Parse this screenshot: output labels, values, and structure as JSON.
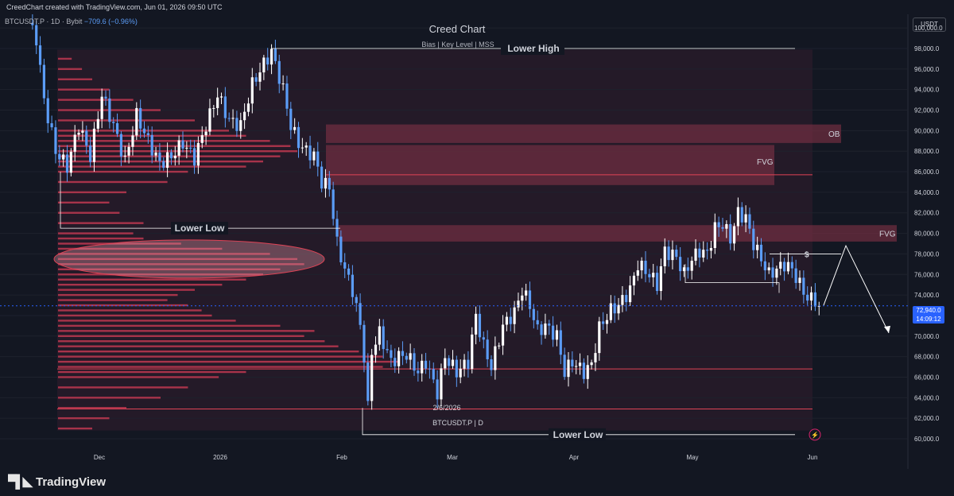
{
  "header": {
    "created_text": "CreedChart created with TradingView.com, Jun 01, 2026 09:50 UTC",
    "symbol": "BTCUSDT.P · 1D · Bybit",
    "change": "−709.6 (−0.96%)"
  },
  "title": {
    "main": "Creed Chart",
    "subtitle": "Bias  |  Key Level  |  MSS"
  },
  "price_axis": {
    "currency": "USDT",
    "current_price": "72,940.0",
    "countdown": "14:09:12"
  },
  "footer": {
    "logo_text": "TradingView"
  },
  "annotations": {
    "lower_high": "Lower High",
    "lower_low_left": "Lower Low",
    "lower_low_bottom": "Lower Low",
    "ob": "OB",
    "fvg_upper": "FVG",
    "fvg_right": "FVG",
    "liquidity": "$",
    "pivot_date": "2/6/2026",
    "symbol_tag": "BTCUSDT.P | D"
  },
  "colors": {
    "background": "#131722",
    "bull_candle": "#ffffff",
    "bear_candle": "#5b9cf6",
    "zone": "#7a2f44",
    "profile": "#c83a52",
    "level_line": "#e04356"
  },
  "chart_data": {
    "type": "candlestick",
    "symbol": "BTCUSDT.P",
    "timeframe": "1D",
    "exchange": "Bybit",
    "y_axis": {
      "min": 60000,
      "max": 100000,
      "ticks": [
        60000,
        62000,
        64000,
        66000,
        68000,
        70000,
        72000,
        74000,
        76000,
        78000,
        80000,
        82000,
        84000,
        86000,
        88000,
        90000,
        92000,
        94000,
        96000,
        98000,
        100000
      ]
    },
    "y_tick_labels": [
      "60,000.0",
      "62,000.0",
      "64,000.0",
      "66,000.0",
      "68,000.0",
      "70,000.0",
      "72,000.0",
      "74,000.0",
      "76,000.0",
      "78,000.0",
      "80,000.0",
      "82,000.0",
      "84,000.0",
      "86,000.0",
      "88,000.0",
      "90,000.0",
      "92,000.0",
      "94,000.0",
      "96,000.0",
      "98,000.0",
      "100,000.0"
    ],
    "x_tick_labels": [
      "Dec",
      "2026",
      "Feb",
      "Mar",
      "Apr",
      "May",
      "Jun"
    ],
    "anchor_path": [
      [
        0,
        100500
      ],
      [
        2,
        99000
      ],
      [
        4,
        93000
      ],
      [
        7,
        88000
      ],
      [
        10,
        86500
      ],
      [
        13,
        90500
      ],
      [
        16,
        87500
      ],
      [
        19,
        93500
      ],
      [
        22,
        90500
      ],
      [
        25,
        87000
      ],
      [
        28,
        91500
      ],
      [
        31,
        89000
      ],
      [
        34,
        86800
      ],
      [
        37,
        87500
      ],
      [
        40,
        88800
      ],
      [
        43,
        87300
      ],
      [
        46,
        90500
      ],
      [
        49,
        93500
      ],
      [
        52,
        91000
      ],
      [
        55,
        90500
      ],
      [
        58,
        94500
      ],
      [
        61,
        96500
      ],
      [
        63,
        97700
      ],
      [
        66,
        94000
      ],
      [
        68,
        90500
      ],
      [
        70,
        88800
      ],
      [
        72,
        88000
      ],
      [
        74,
        87600
      ],
      [
        76,
        85000
      ],
      [
        78,
        84500
      ],
      [
        80,
        79000
      ],
      [
        82,
        76500
      ],
      [
        84,
        74500
      ],
      [
        86,
        71000
      ],
      [
        87,
        68000
      ],
      [
        88,
        63000
      ],
      [
        89,
        68500
      ],
      [
        91,
        70300
      ],
      [
        94,
        67500
      ],
      [
        96,
        68000
      ],
      [
        98,
        68200
      ],
      [
        101,
        66500
      ],
      [
        103,
        67500
      ],
      [
        106,
        64500
      ],
      [
        108,
        68000
      ],
      [
        111,
        66500
      ],
      [
        114,
        67500
      ],
      [
        116,
        72000
      ],
      [
        118,
        69000
      ],
      [
        120,
        67000
      ],
      [
        123,
        71000
      ],
      [
        126,
        72300
      ],
      [
        128,
        74500
      ],
      [
        130,
        73000
      ],
      [
        132,
        70500
      ],
      [
        134,
        71000
      ],
      [
        137,
        70000
      ],
      [
        139,
        66500
      ],
      [
        141,
        67500
      ],
      [
        144,
        66500
      ],
      [
        146,
        67200
      ],
      [
        148,
        70800
      ],
      [
        151,
        72500
      ],
      [
        153,
        73000
      ],
      [
        156,
        74500
      ],
      [
        158,
        77000
      ],
      [
        161,
        76000
      ],
      [
        163,
        75000
      ],
      [
        165,
        78300
      ],
      [
        168,
        77700
      ],
      [
        170,
        76000
      ],
      [
        172,
        77500
      ],
      [
        174,
        78300
      ],
      [
        176,
        78000
      ],
      [
        178,
        80500
      ],
      [
        180,
        80900
      ],
      [
        182,
        79500
      ],
      [
        184,
        82000
      ],
      [
        186,
        81500
      ],
      [
        188,
        79000
      ],
      [
        190,
        77500
      ],
      [
        192,
        76000
      ],
      [
        194,
        76500
      ],
      [
        196,
        77000
      ],
      [
        198,
        76500
      ],
      [
        200,
        75000
      ],
      [
        202,
        73700
      ],
      [
        204,
        73500
      ],
      [
        205,
        72940
      ]
    ],
    "volume_profile": [
      [
        61000,
        0.1
      ],
      [
        62000,
        0.15
      ],
      [
        63000,
        0.2
      ],
      [
        64000,
        0.3
      ],
      [
        65000,
        0.38
      ],
      [
        66000,
        0.47
      ],
      [
        66500,
        0.55
      ],
      [
        67000,
        0.95
      ],
      [
        67500,
        1.0
      ],
      [
        68000,
        0.95
      ],
      [
        68500,
        0.88
      ],
      [
        69000,
        0.82
      ],
      [
        69500,
        0.78
      ],
      [
        70000,
        0.72
      ],
      [
        70500,
        0.75
      ],
      [
        71000,
        0.65
      ],
      [
        71500,
        0.52
      ],
      [
        72000,
        0.45
      ],
      [
        72500,
        0.42
      ],
      [
        73000,
        0.38
      ],
      [
        73500,
        0.32
      ],
      [
        74000,
        0.35
      ],
      [
        74500,
        0.4
      ],
      [
        75000,
        0.48
      ],
      [
        75500,
        0.55
      ],
      [
        76000,
        0.6
      ],
      [
        76500,
        0.65
      ],
      [
        77000,
        0.72
      ],
      [
        77500,
        0.7
      ],
      [
        78000,
        0.62
      ],
      [
        78500,
        0.48
      ],
      [
        79000,
        0.36
      ],
      [
        79500,
        0.25
      ],
      [
        80000,
        0.22
      ],
      [
        81000,
        0.25
      ],
      [
        82000,
        0.18
      ],
      [
        83000,
        0.15
      ],
      [
        84000,
        0.2
      ],
      [
        85000,
        0.32
      ],
      [
        86000,
        0.38
      ],
      [
        86500,
        0.55
      ],
      [
        87000,
        0.6
      ],
      [
        87500,
        0.65
      ],
      [
        88000,
        0.7
      ],
      [
        88500,
        0.68
      ],
      [
        89000,
        0.62
      ],
      [
        89500,
        0.55
      ],
      [
        90000,
        0.5
      ],
      [
        91000,
        0.4
      ],
      [
        92000,
        0.3
      ],
      [
        93000,
        0.22
      ],
      [
        94000,
        0.15
      ],
      [
        95000,
        0.1
      ],
      [
        96000,
        0.07
      ],
      [
        97000,
        0.04
      ]
    ],
    "zones": [
      {
        "label": "OB",
        "from": 88800,
        "to": 90600
      },
      {
        "label": "FVG",
        "from": 84700,
        "to": 88600
      },
      {
        "label": "FVG",
        "from": 79200,
        "to": 80800
      }
    ],
    "levels": [
      85700,
      66800,
      62900
    ],
    "swing_labels": [
      {
        "label": "Lower High",
        "price": 98000
      },
      {
        "label": "Lower Low",
        "price": 80500
      },
      {
        "label": "Lower Low",
        "price": 60000
      },
      {
        "label": "$",
        "price": 78000
      }
    ],
    "current_price": 72940
  }
}
